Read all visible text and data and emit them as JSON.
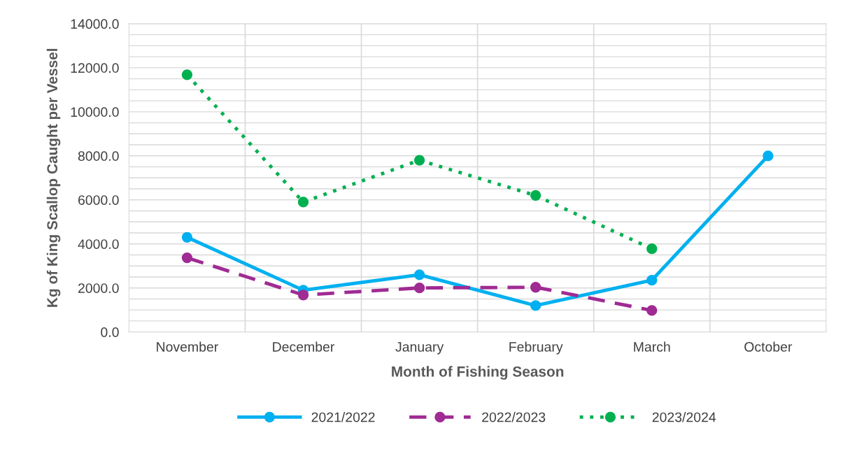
{
  "chart_data": {
    "type": "line",
    "xlabel": "Month of Fishing Season",
    "ylabel": "Kg of King Scallop Caught per Vessel",
    "categories": [
      "November",
      "December",
      "January",
      "February",
      "March",
      "October"
    ],
    "series": [
      {
        "name": "2021/2022",
        "color": "#00b0f0",
        "line_style": "solid",
        "values": [
          4300,
          1900,
          2600,
          1200,
          2350,
          8000
        ]
      },
      {
        "name": "2022/2023",
        "color": "#a02b93",
        "line_style": "dashed",
        "values": [
          3370,
          1680,
          2000,
          2030,
          980,
          null
        ]
      },
      {
        "name": "2023/2024",
        "color": "#00b050",
        "line_style": "dotted",
        "values": [
          11680,
          5900,
          7800,
          6200,
          3780,
          null
        ]
      }
    ],
    "ylim": [
      0,
      14000
    ],
    "yticks": [
      {
        "value": 0,
        "label": "0.0"
      },
      {
        "value": 500,
        "label": null
      },
      {
        "value": 1000,
        "label": null
      },
      {
        "value": 1500,
        "label": null
      },
      {
        "value": 2000,
        "label": "2000.0"
      },
      {
        "value": 2500,
        "label": null
      },
      {
        "value": 3000,
        "label": null
      },
      {
        "value": 3500,
        "label": null
      },
      {
        "value": 4000,
        "label": "4000.0"
      },
      {
        "value": 4500,
        "label": null
      },
      {
        "value": 5000,
        "label": null
      },
      {
        "value": 5500,
        "label": null
      },
      {
        "value": 6000,
        "label": "6000.0"
      },
      {
        "value": 6500,
        "label": null
      },
      {
        "value": 7000,
        "label": null
      },
      {
        "value": 7500,
        "label": null
      },
      {
        "value": 8000,
        "label": "8000.0"
      },
      {
        "value": 8500,
        "label": null
      },
      {
        "value": 9000,
        "label": null
      },
      {
        "value": 9500,
        "label": null
      },
      {
        "value": 10000,
        "label": "10000.0"
      },
      {
        "value": 10500,
        "label": null
      },
      {
        "value": 11000,
        "label": null
      },
      {
        "value": 11500,
        "label": null
      },
      {
        "value": 12000,
        "label": "12000.0"
      },
      {
        "value": 12500,
        "label": null
      },
      {
        "value": 13000,
        "label": null
      },
      {
        "value": 13500,
        "label": null
      },
      {
        "value": 14000,
        "label": "14000.0"
      }
    ],
    "grid": true,
    "legend": "bottom",
    "marker": "circle"
  }
}
